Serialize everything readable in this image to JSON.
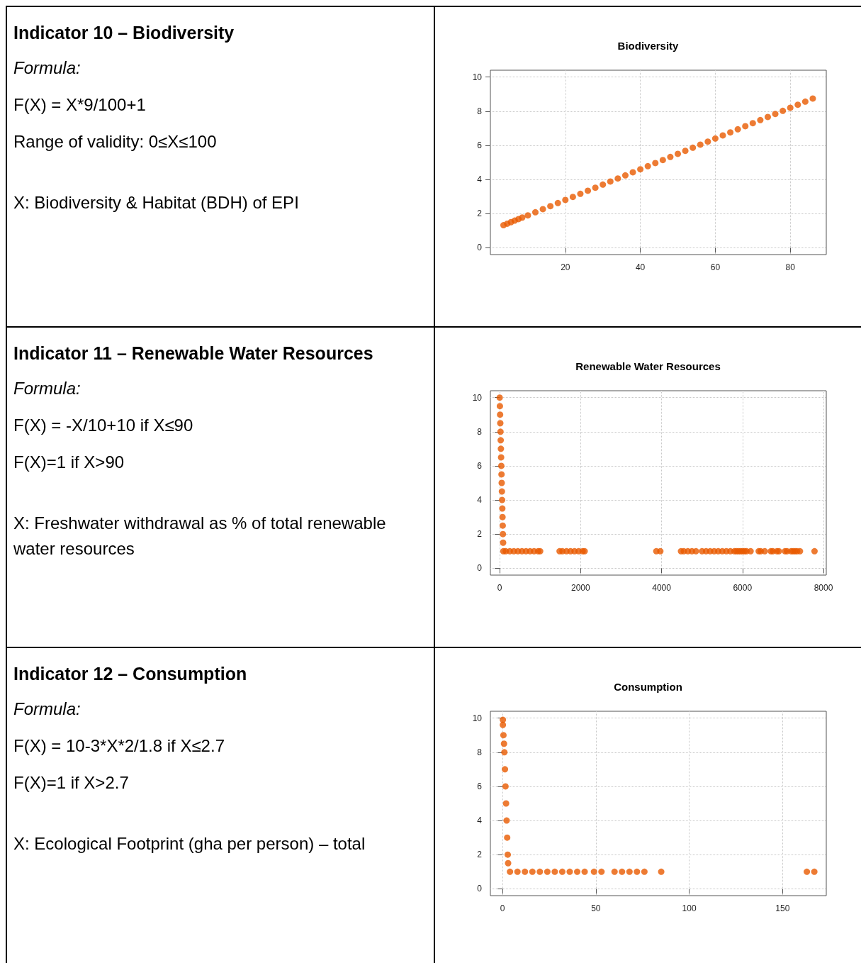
{
  "chart_data": [
    {
      "type": "other",
      "title": "Indicator 10 – Biodiversity",
      "annotations": [
        "Formula:",
        "F(X) = X*9/100+1",
        "Range of validity: 0≤X≤100",
        "X: Biodiversity & Habitat (BDH) of EPI"
      ]
    },
    {
      "type": "scatter",
      "title": "Biodiversity",
      "color": "#e85a00",
      "marker": "circle",
      "grid": true,
      "xlim": [
        0,
        89.6
      ],
      "ylim": [
        -0.4,
        10.4
      ],
      "xticks": [
        20,
        40,
        60,
        80
      ],
      "yticks": [
        0,
        2,
        4,
        6,
        8,
        10
      ],
      "x": [
        3.5,
        4.5,
        5.5,
        6.5,
        7.5,
        8.5,
        10,
        12,
        14,
        16,
        18,
        20,
        22,
        24,
        26,
        28,
        30,
        32,
        34,
        36,
        38,
        40,
        42,
        44,
        46,
        48,
        50,
        52,
        54,
        56,
        58,
        60,
        62,
        64,
        66,
        68,
        70,
        72,
        74,
        76,
        78,
        80,
        82,
        84,
        86
      ],
      "values": [
        1.32,
        1.41,
        1.5,
        1.59,
        1.68,
        1.77,
        1.9,
        2.08,
        2.26,
        2.44,
        2.62,
        2.8,
        2.98,
        3.16,
        3.34,
        3.52,
        3.7,
        3.88,
        4.06,
        4.24,
        4.42,
        4.6,
        4.78,
        4.96,
        5.14,
        5.32,
        5.5,
        5.68,
        5.86,
        6.04,
        6.22,
        6.4,
        6.58,
        6.76,
        6.94,
        7.12,
        7.3,
        7.48,
        7.66,
        7.84,
        8.02,
        8.2,
        8.38,
        8.56,
        8.74
      ]
    },
    {
      "type": "other",
      "title": "Indicator 11 – Renewable Water Resources",
      "annotations": [
        "Formula:",
        "F(X) = -X/10+10 if X≤90",
        "F(X)=1 if X>90",
        "X: Freshwater withdrawal as % of total renewable water resources"
      ]
    },
    {
      "type": "scatter",
      "title": "Renewable Water Resources",
      "color": "#e85a00",
      "marker": "circle",
      "grid": true,
      "xlim": [
        -230,
        8070
      ],
      "ylim": [
        -0.4,
        10.4
      ],
      "xticks": [
        0,
        2000,
        4000,
        6000,
        8000
      ],
      "yticks": [
        0,
        2,
        4,
        6,
        8,
        10
      ],
      "x": [
        0,
        5,
        10,
        15,
        20,
        25,
        30,
        35,
        40,
        45,
        50,
        55,
        60,
        65,
        70,
        75,
        80,
        85,
        90,
        150,
        250,
        350,
        450,
        550,
        650,
        750,
        850,
        950,
        1000,
        1480,
        1550,
        1650,
        1750,
        1850,
        1950,
        2050,
        2100,
        3870,
        3970,
        4480,
        4550,
        4650,
        4750,
        4850,
        5000,
        5100,
        5200,
        5300,
        5400,
        5500,
        5600,
        5700,
        5800,
        5850,
        5900,
        5950,
        6000,
        6050,
        6100,
        6200,
        6400,
        6450,
        6550,
        6700,
        6750,
        6850,
        6900,
        7050,
        7100,
        7200,
        7250,
        7300,
        7350,
        7420,
        7780
      ],
      "values": [
        10,
        9.5,
        9,
        8.5,
        8,
        7.5,
        7,
        6.5,
        6,
        5.5,
        5,
        4.5,
        4,
        3.5,
        3,
        2.5,
        2,
        1.5,
        1,
        1,
        1,
        1,
        1,
        1,
        1,
        1,
        1,
        1,
        1,
        1,
        1,
        1,
        1,
        1,
        1,
        1,
        1,
        1,
        1,
        1,
        1,
        1,
        1,
        1,
        1,
        1,
        1,
        1,
        1,
        1,
        1,
        1,
        1,
        1,
        1,
        1,
        1,
        1,
        1,
        1,
        1,
        1,
        1,
        1,
        1,
        1,
        1,
        1,
        1,
        1,
        1,
        1,
        1,
        1,
        1
      ]
    },
    {
      "type": "other",
      "title": "Indicator 12 – Consumption",
      "annotations": [
        "Formula:",
        "F(X) = 10-3*X*2/1.8 if X≤2.7",
        "F(X)=1 if X>2.7",
        "X: Ecological Footprint (gha per person) – total"
      ]
    },
    {
      "type": "scatter",
      "title": "Consumption",
      "color": "#e85a00",
      "marker": "circle",
      "grid": true,
      "xlim": [
        -6.5,
        173.4
      ],
      "ylim": [
        -0.4,
        10.4
      ],
      "xticks": [
        0,
        50,
        100,
        150
      ],
      "yticks": [
        0,
        2,
        4,
        6,
        8,
        10
      ],
      "x": [
        0.2,
        0.2,
        0.5,
        0.8,
        1,
        1.3,
        1.6,
        1.9,
        2.2,
        2.5,
        2.8,
        3,
        4,
        8,
        12,
        16,
        20,
        24,
        28,
        32,
        36,
        40,
        44,
        49,
        53,
        60,
        64,
        68,
        72,
        76,
        85,
        163,
        167
      ],
      "values": [
        9.9,
        9.6,
        9,
        8.5,
        8,
        7,
        6,
        5,
        4,
        3,
        2,
        1.5,
        1,
        1,
        1,
        1,
        1,
        1,
        1,
        1,
        1,
        1,
        1,
        1,
        1,
        1,
        1,
        1,
        1,
        1,
        1,
        1,
        1
      ]
    }
  ]
}
